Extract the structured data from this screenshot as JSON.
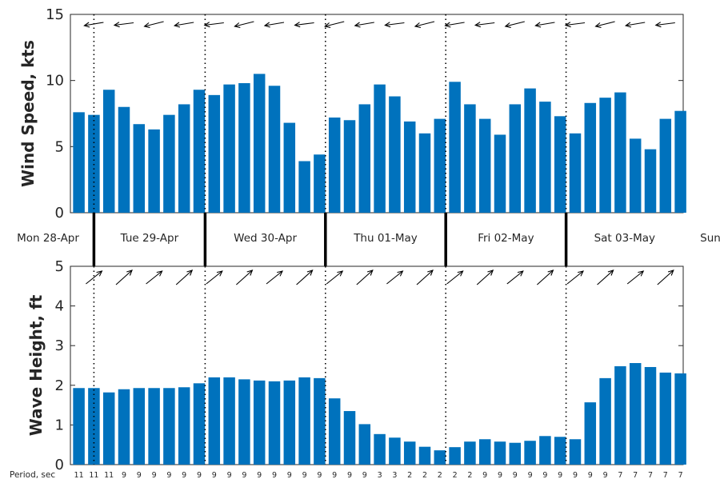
{
  "chart_data": [
    {
      "type": "bar",
      "ylabel": "Wind Speed, kts",
      "ylim": [
        0,
        15
      ],
      "yticks": [
        "0",
        "5",
        "10",
        "15"
      ],
      "bar_color": "#0072BD",
      "values": [
        7.6,
        7.4,
        9.3,
        8.0,
        6.7,
        6.3,
        7.4,
        8.2,
        9.3,
        8.9,
        9.7,
        9.8,
        10.5,
        9.6,
        6.8,
        3.9,
        4.4,
        7.2,
        7.0,
        8.2,
        9.7,
        8.8,
        6.9,
        6.0,
        7.1,
        9.9,
        8.2,
        7.1,
        5.9,
        8.2,
        9.4,
        8.4,
        7.3,
        6.0,
        8.3,
        8.7,
        9.1,
        5.6,
        4.8,
        7.1,
        7.7
      ],
      "direction_arrows": "left-pointing wind direction arrows above bars"
    },
    {
      "type": "bar",
      "ylabel": "Wave Height, ft",
      "ylim": [
        0,
        5
      ],
      "yticks": [
        "0",
        "1",
        "2",
        "3",
        "4",
        "5"
      ],
      "bar_color": "#0072BD",
      "values": [
        1.93,
        1.93,
        1.82,
        1.9,
        1.93,
        1.93,
        1.93,
        1.95,
        2.05,
        2.2,
        2.2,
        2.15,
        2.12,
        2.1,
        2.12,
        2.2,
        2.18,
        1.67,
        1.35,
        1.02,
        0.77,
        0.68,
        0.58,
        0.45,
        0.36,
        0.44,
        0.58,
        0.64,
        0.58,
        0.55,
        0.6,
        0.72,
        0.7,
        0.64,
        1.57,
        2.18,
        2.48,
        2.56,
        2.46,
        2.32,
        2.3
      ],
      "periods_label": "Period, sec",
      "periods": [
        "11",
        "11",
        "11",
        "9",
        "9",
        "9",
        "9",
        "9",
        "9",
        "9",
        "9",
        "9",
        "9",
        "9",
        "9",
        "9",
        "9",
        "9",
        "9",
        "9",
        "3",
        "3",
        "2",
        "2",
        "2",
        "2",
        "2",
        "9",
        "9",
        "9",
        "9",
        "9",
        "9",
        "9",
        "9",
        "9",
        "7",
        "7",
        "7",
        "7",
        "7"
      ],
      "direction_arrows": "up-right wave direction arrows above bars"
    }
  ],
  "day_labels": [
    "Mon 28-Apr",
    "Tue 29-Apr",
    "Wed 30-Apr",
    "Thu 01-May",
    "Fri 02-May",
    "Sat 03-May",
    "Sun"
  ]
}
